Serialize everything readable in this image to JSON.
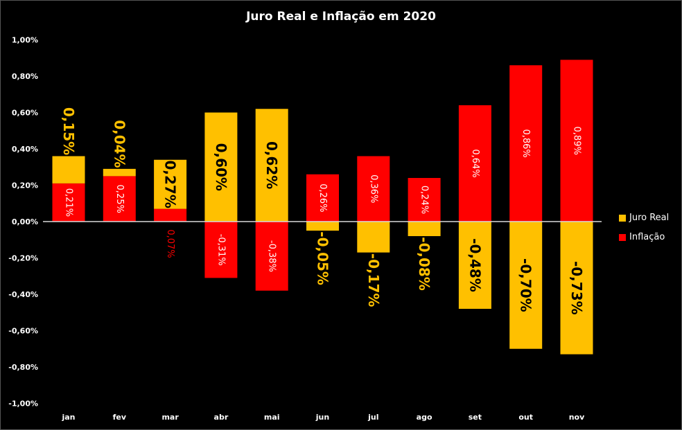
{
  "chart_data": {
    "type": "bar",
    "stacked": true,
    "title": "Juro Real e Inflação em 2020",
    "categories": [
      "jan",
      "fev",
      "mar",
      "abr",
      "mai",
      "jun",
      "jul",
      "ago",
      "set",
      "out",
      "nov"
    ],
    "series": [
      {
        "name": "Inflação",
        "color": "#FF0000",
        "values": [
          0.21,
          0.25,
          0.07,
          -0.31,
          -0.38,
          0.26,
          0.36,
          0.24,
          0.64,
          0.86,
          0.89
        ],
        "labels": [
          "0,21%",
          "0,25%",
          "0,07%",
          "-0,31%",
          "-0,38%",
          "0,26%",
          "0,36%",
          "0,24%",
          "0,64%",
          "0,86%",
          "0,89%"
        ]
      },
      {
        "name": "Juro Real",
        "color": "#FFC000",
        "values": [
          0.15,
          0.04,
          0.27,
          0.6,
          0.62,
          -0.05,
          -0.17,
          -0.08,
          -0.48,
          -0.7,
          -0.73
        ],
        "labels": [
          "0,15%",
          "0,04%",
          "0,27%",
          "0,60%",
          "0,62%",
          "-0,05%",
          "-0,17%",
          "-0,08%",
          "-0,48%",
          "-0,70%",
          "-0,73%"
        ]
      }
    ],
    "ylim": [
      -1.0,
      1.0
    ],
    "yticks": [
      1.0,
      0.8,
      0.6,
      0.4,
      0.2,
      0.0,
      -0.2,
      -0.4,
      -0.6,
      -0.8,
      -1.0
    ],
    "ytick_labels": [
      "1,00%",
      "0,80%",
      "0,60%",
      "0,40%",
      "0,20%",
      "0,00%",
      "-0,20%",
      "-0,40%",
      "-0,60%",
      "-0,80%",
      "-1,00%"
    ],
    "grid": false,
    "legend_position": "right"
  }
}
